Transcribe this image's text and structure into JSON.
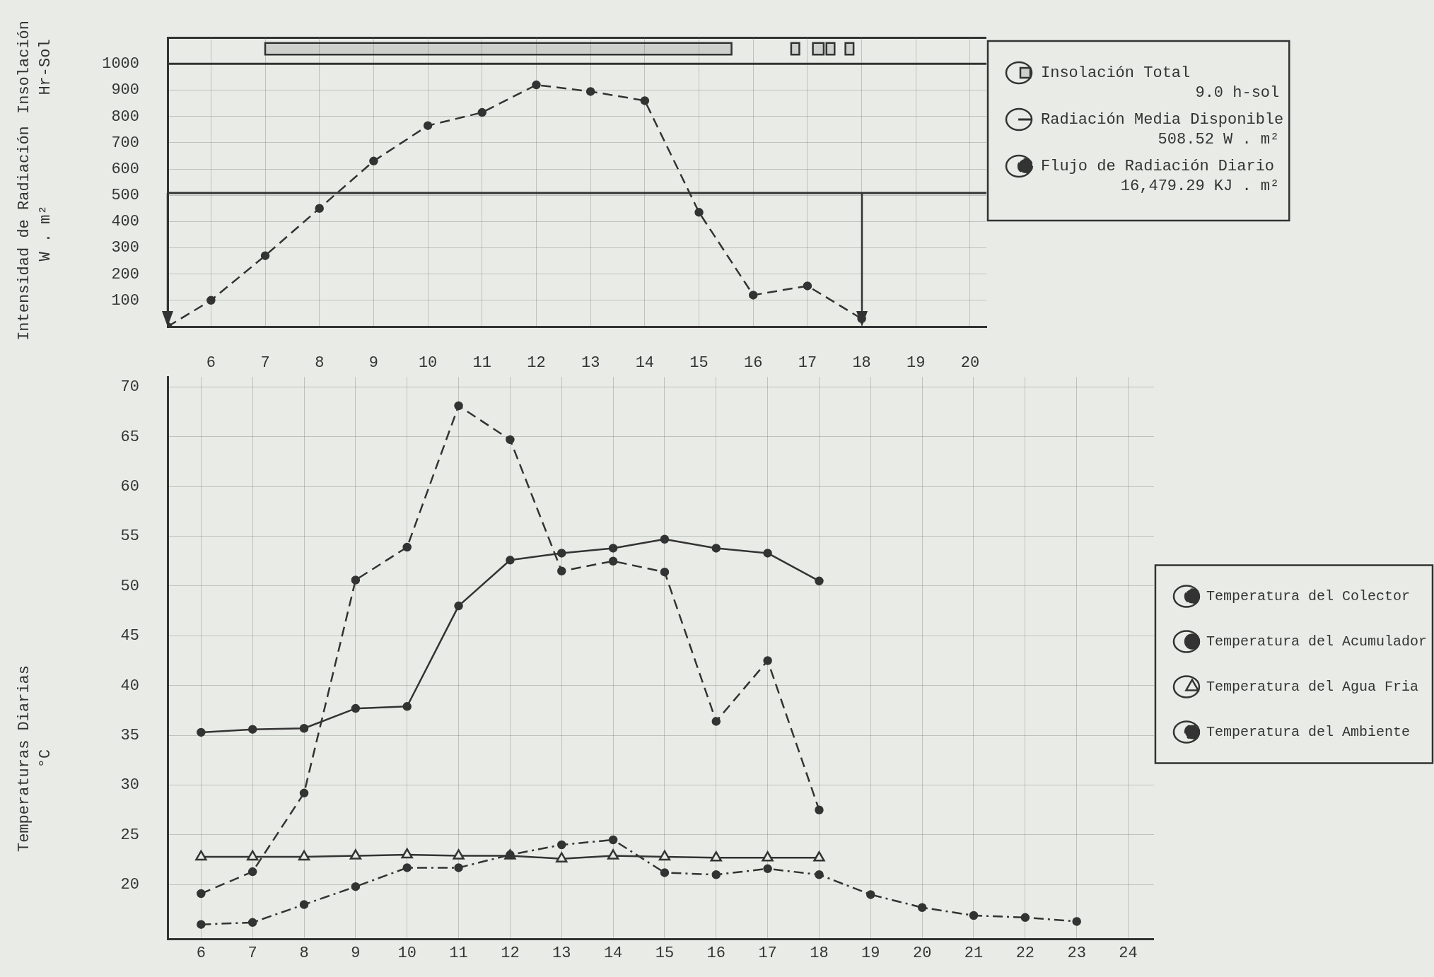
{
  "chart_data": [
    {
      "type": "line",
      "ylabel": "Intensidad de Radiación\nW . m²",
      "xlim": [
        5.2,
        20.3
      ],
      "xticks": [
        6,
        7,
        8,
        9,
        10,
        11,
        12,
        13,
        14,
        15,
        16,
        17,
        18,
        19,
        20
      ],
      "ylim": [
        0,
        1100
      ],
      "yticks": [
        100,
        200,
        300,
        400,
        500,
        600,
        700,
        800,
        900,
        1000
      ],
      "grid": true,
      "legend": "top right",
      "marker": "circle",
      "line_style": "dashed",
      "series": [
        {
          "name": "Flujo de Radiación Diario",
          "color": "#333333",
          "x": [
            5.2,
            6,
            7,
            8,
            9,
            10,
            11,
            12,
            13,
            14,
            15,
            16,
            17,
            18
          ],
          "values": [
            0,
            100,
            270,
            450,
            630,
            765,
            815,
            920,
            895,
            860,
            435,
            120,
            155,
            30
          ]
        }
      ],
      "ref_lines": [
        {
          "axis": "y",
          "value": 508.52,
          "label": "Radiación Media Disponible",
          "color": "#333333",
          "line_style": "solid"
        },
        {
          "axis": "y",
          "value": 1000,
          "color": "#333333",
          "line_style": "solid"
        }
      ],
      "bands": [
        {
          "axis": "x",
          "from": 7.0,
          "to": 15.6,
          "label": "Insolación Total",
          "color": "#333333"
        },
        {
          "axis": "x",
          "from": 16.7,
          "to": 16.85,
          "color": "#333333"
        },
        {
          "axis": "x",
          "from": 17.1,
          "to": 17.3,
          "color": "#333333"
        },
        {
          "axis": "x",
          "from": 17.35,
          "to": 17.5,
          "color": "#333333"
        },
        {
          "axis": "x",
          "from": 17.7,
          "to": 17.85,
          "color": "#333333"
        }
      ],
      "annotations": [
        "Insolación\nHr-Sol",
        "9.0 h-sol",
        "508.52 W . m²",
        "16,479.29 KJ . m²"
      ]
    },
    {
      "type": "line",
      "ylabel": "Temperaturas Diarias\n°C",
      "xlim": [
        5.35,
        24.5
      ],
      "xticks": [
        6,
        7,
        8,
        9,
        10,
        11,
        12,
        13,
        14,
        15,
        16,
        17,
        18,
        19,
        20,
        21,
        22,
        23,
        24
      ],
      "ylim": [
        14.5,
        71
      ],
      "yticks": [
        20,
        25,
        30,
        35,
        40,
        45,
        50,
        55,
        60,
        65,
        70
      ],
      "grid": true,
      "legend": "right",
      "series": [
        {
          "name": "Temperatura del Colector",
          "color": "#333333",
          "line_style": "dashed",
          "marker": "circle",
          "x": [
            6,
            7,
            8,
            9,
            10,
            11,
            12,
            13,
            14,
            15,
            16,
            17,
            18
          ],
          "values": [
            19.1,
            21.3,
            29.2,
            50.6,
            53.9,
            68.1,
            64.7,
            51.5,
            52.5,
            51.4,
            36.4,
            42.5,
            27.5
          ]
        },
        {
          "name": "Temperatura del Acumulador",
          "color": "#333333",
          "line_style": "solid",
          "marker": "circle",
          "x": [
            6,
            7,
            8,
            9,
            10,
            11,
            12,
            13,
            14,
            15,
            16,
            17,
            18
          ],
          "values": [
            35.3,
            35.6,
            35.7,
            37.7,
            37.9,
            48.0,
            52.6,
            53.3,
            53.8,
            54.7,
            53.8,
            53.3,
            50.5
          ]
        },
        {
          "name": "Temperatura del Agua Fria",
          "color": "#333333",
          "line_style": "solid",
          "marker": "triangle",
          "x": [
            6,
            7,
            8,
            9,
            10,
            11,
            12,
            13,
            14,
            15,
            16,
            17,
            18
          ],
          "values": [
            22.8,
            22.8,
            22.8,
            22.9,
            23.0,
            22.9,
            22.9,
            22.6,
            22.9,
            22.8,
            22.7,
            22.7,
            22.7
          ]
        },
        {
          "name": "Temperatura del Ambiente",
          "color": "#333333",
          "line_style": "dotted",
          "marker": "circle",
          "x": [
            6,
            7,
            8,
            9,
            10,
            11,
            12,
            13,
            14,
            15,
            16,
            17,
            18,
            19,
            20,
            21,
            22,
            23
          ],
          "values": [
            16.0,
            16.2,
            18.0,
            19.8,
            21.7,
            21.7,
            23.0,
            24.0,
            24.5,
            21.2,
            21.0,
            21.6,
            21.0,
            19.0,
            17.7,
            16.9,
            16.7,
            16.3
          ]
        }
      ]
    }
  ]
}
